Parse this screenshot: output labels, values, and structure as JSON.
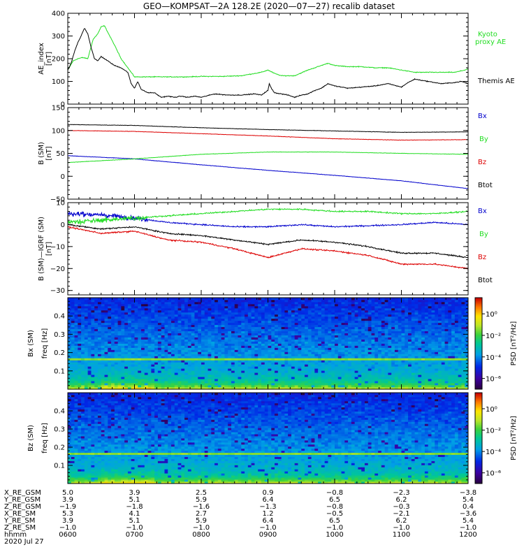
{
  "title": "GEO—KOMPSAT—2A 128.2E (2020—07—27) recalib dataset",
  "colors": {
    "black": "#000000",
    "red": "#dd0000",
    "green": "#22dd22",
    "blue": "#0000cc"
  },
  "chart_data": [
    {
      "type": "line",
      "id": "ae",
      "ylabel": [
        "AE_index",
        "[nT]"
      ],
      "ylim": [
        0,
        400
      ],
      "yticks": [
        0,
        100,
        200,
        300,
        400
      ],
      "ytick_labels": [
        "0",
        "100",
        "200",
        "300",
        "400"
      ],
      "xlim": [
        6,
        12
      ],
      "series": [
        {
          "name": "Kyoto proxy AE",
          "legend": [
            "Kyoto",
            "proxy AE"
          ],
          "color": "#22dd22",
          "x": [
            6.0,
            6.08,
            6.15,
            6.22,
            6.3,
            6.38,
            6.45,
            6.5,
            6.55,
            6.62,
            6.7,
            6.8,
            6.9,
            7.0,
            7.2,
            7.5,
            7.8,
            8.0,
            8.3,
            8.6,
            8.9,
            9.0,
            9.1,
            9.2,
            9.4,
            9.6,
            9.75,
            9.9,
            10.0,
            10.2,
            10.4,
            10.6,
            10.8,
            11.0,
            11.2,
            11.4,
            11.6,
            11.8,
            11.95,
            12.0
          ],
          "y": [
            150,
            190,
            200,
            205,
            200,
            285,
            310,
            340,
            345,
            305,
            260,
            200,
            160,
            120,
            120,
            120,
            120,
            122,
            122,
            125,
            140,
            150,
            135,
            125,
            125,
            150,
            165,
            180,
            170,
            165,
            165,
            160,
            160,
            150,
            140,
            140,
            140,
            140,
            150,
            155
          ]
        },
        {
          "name": "Themis AE",
          "legend": [
            "Themis AE"
          ],
          "color": "#000000",
          "x": [
            6.0,
            6.05,
            6.1,
            6.15,
            6.2,
            6.25,
            6.3,
            6.35,
            6.4,
            6.45,
            6.5,
            6.55,
            6.6,
            6.7,
            6.8,
            6.9,
            6.95,
            7.0,
            7.05,
            7.1,
            7.2,
            7.3,
            7.4,
            7.5,
            7.6,
            7.7,
            7.8,
            7.9,
            8.0,
            8.2,
            8.4,
            8.6,
            8.8,
            8.9,
            9.0,
            9.02,
            9.05,
            9.1,
            9.2,
            9.3,
            9.4,
            9.5,
            9.6,
            9.7,
            9.8,
            9.9,
            10.0,
            10.2,
            10.4,
            10.6,
            10.8,
            11.0,
            11.1,
            11.2,
            11.4,
            11.6,
            11.8,
            11.9,
            12.0
          ],
          "y": [
            150,
            180,
            230,
            270,
            300,
            335,
            310,
            250,
            200,
            190,
            210,
            200,
            190,
            170,
            160,
            140,
            90,
            70,
            100,
            65,
            50,
            50,
            30,
            35,
            30,
            35,
            30,
            35,
            30,
            45,
            40,
            40,
            45,
            40,
            60,
            90,
            70,
            50,
            45,
            40,
            30,
            40,
            45,
            60,
            70,
            90,
            80,
            70,
            75,
            80,
            90,
            75,
            95,
            110,
            100,
            90,
            95,
            100,
            90
          ]
        }
      ]
    },
    {
      "type": "line",
      "id": "bsm",
      "ylabel": [
        "B (SM)",
        "[nT]"
      ],
      "ylim": [
        -50,
        150
      ],
      "yticks": [
        -50,
        0,
        50,
        100,
        150
      ],
      "ytick_labels": [
        "−50",
        "0",
        "50",
        "100",
        "150"
      ],
      "xlim": [
        6,
        12
      ],
      "series": [
        {
          "name": "Bx",
          "color": "#0000cc",
          "x": [
            6,
            7,
            8,
            9,
            10,
            11,
            12
          ],
          "y": [
            45,
            38,
            25,
            13,
            2,
            -10,
            -27
          ]
        },
        {
          "name": "By",
          "color": "#22dd22",
          "x": [
            6,
            7,
            8,
            9,
            10,
            11,
            12
          ],
          "y": [
            30,
            38,
            48,
            53,
            53,
            50,
            48
          ]
        },
        {
          "name": "Bz",
          "color": "#dd0000",
          "x": [
            6,
            7,
            8,
            9,
            10,
            11,
            12
          ],
          "y": [
            100,
            98,
            93,
            88,
            82,
            79,
            80
          ]
        },
        {
          "name": "Btot",
          "color": "#000000",
          "x": [
            6,
            7,
            8,
            9,
            10,
            11,
            12
          ],
          "y": [
            113,
            111,
            106,
            102,
            99,
            96,
            97
          ]
        }
      ]
    },
    {
      "type": "line",
      "id": "bigrf",
      "ylabel": [
        "B (SM)—IGRF (SM)",
        "[nT]"
      ],
      "ylim": [
        -32,
        10
      ],
      "yticks": [
        -30,
        -20,
        -10,
        0,
        10
      ],
      "ytick_labels": [
        "−30",
        "−20",
        "−10",
        "0",
        "10"
      ],
      "xlim": [
        6,
        12
      ],
      "series": [
        {
          "name": "Bx",
          "color": "#0000cc",
          "x": [
            6,
            6.5,
            7,
            7.5,
            8,
            8.5,
            9,
            9.5,
            10,
            10.5,
            11,
            11.5,
            12
          ],
          "y": [
            5,
            4.5,
            3,
            1,
            0,
            -1,
            -1,
            0,
            -1,
            -0.5,
            0,
            1,
            0
          ]
        },
        {
          "name": "By",
          "color": "#22dd22",
          "x": [
            6,
            6.5,
            7,
            7.5,
            8,
            8.5,
            9,
            9.5,
            10,
            10.5,
            11,
            11.5,
            12
          ],
          "y": [
            1,
            2,
            3,
            4,
            5,
            6,
            7,
            7,
            6,
            6,
            5,
            5,
            6
          ]
        },
        {
          "name": "Bz",
          "color": "#dd0000",
          "x": [
            6,
            6.5,
            7,
            7.5,
            8,
            8.5,
            9,
            9.5,
            10,
            10.5,
            11,
            11.5,
            12
          ],
          "y": [
            -1,
            -4,
            -3,
            -7,
            -8,
            -11,
            -15,
            -11,
            -12,
            -14,
            -18,
            -18,
            -20
          ]
        },
        {
          "name": "Btot",
          "color": "#000000",
          "x": [
            6,
            6.5,
            7,
            7.5,
            8,
            8.5,
            9,
            9.5,
            10,
            10.5,
            11,
            11.5,
            12
          ],
          "y": [
            0,
            -2,
            -1,
            -4,
            -5,
            -7,
            -9,
            -7,
            -8,
            -10,
            -13,
            -13,
            -15
          ]
        }
      ]
    },
    {
      "type": "heatmap",
      "id": "bxspec",
      "ylabel": [
        "Bx (SM)",
        "freq  [Hz]"
      ],
      "ylim": [
        0,
        0.5
      ],
      "yticks": [
        0.1,
        0.2,
        0.3,
        0.4
      ],
      "ytick_labels": [
        "0.1",
        "0.2",
        "0.3",
        "0.4"
      ],
      "colorbar_label": "PSD  [nT²/Hz]",
      "colorbar_ticks": [
        "10⁰",
        "10⁻²",
        "10⁻⁴",
        "10⁻⁶"
      ],
      "colorbar_exponents": [
        0,
        -2,
        -4,
        -6
      ],
      "colorbar_range": [
        -7,
        1.5
      ],
      "band_freq_hz": 0.17,
      "xlim": [
        6,
        12
      ]
    },
    {
      "type": "heatmap",
      "id": "bzspec",
      "ylabel": [
        "Bz (SM)",
        "freq  [Hz]"
      ],
      "ylim": [
        0,
        0.5
      ],
      "yticks": [
        0.1,
        0.2,
        0.3,
        0.4
      ],
      "ytick_labels": [
        "0.1",
        "0.2",
        "0.3",
        "0.4"
      ],
      "colorbar_label": "PSD  [nT²/Hz]",
      "colorbar_ticks": [
        "10⁰",
        "10⁻²",
        "10⁻⁴",
        "10⁻⁶"
      ],
      "colorbar_exponents": [
        0,
        -2,
        -4,
        -6
      ],
      "colorbar_range": [
        -7,
        1.5
      ],
      "band_freq_hz": 0.17,
      "xlim": [
        6,
        12
      ]
    }
  ],
  "orbit_table": {
    "rows": [
      {
        "label": "X_RE_GSM",
        "values": [
          "5.0",
          "3.9",
          "2.5",
          "0.9",
          "−0.8",
          "−2.3",
          "−3.8"
        ]
      },
      {
        "label": "Y_RE_GSM",
        "values": [
          "3.9",
          "5.1",
          "5.9",
          "6.4",
          "6.5",
          "6.2",
          "5.4"
        ]
      },
      {
        "label": "Z_RE_GSM",
        "values": [
          "−1.9",
          "−1.8",
          "−1.6",
          "−1.3",
          "−0.8",
          "−0.3",
          "0.4"
        ]
      },
      {
        "label": "X_RE_SM",
        "values": [
          "5.3",
          "4.1",
          "2.7",
          "1.2",
          "−0.5",
          "−2.1",
          "−3.6"
        ]
      },
      {
        "label": "Y_RE_SM",
        "values": [
          "3.9",
          "5.1",
          "5.9",
          "6.4",
          "6.5",
          "6.2",
          "5.4"
        ]
      },
      {
        "label": "Z_RE_SM",
        "values": [
          "−1.0",
          "−1.0",
          "−1.0",
          "−1.0",
          "−1.0",
          "−1.0",
          "−1.0"
        ]
      },
      {
        "label": "hhmm",
        "values": [
          "0600",
          "0700",
          "0800",
          "0900",
          "1000",
          "1100",
          "1200"
        ]
      }
    ],
    "date": "2020 Jul 27"
  }
}
